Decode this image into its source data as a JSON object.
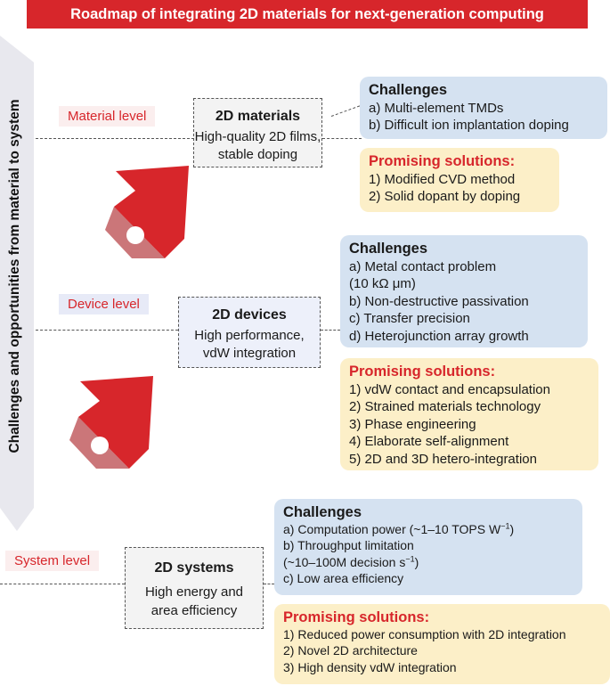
{
  "title": "Roadmap of integrating 2D materials for next-generation computing",
  "axis_label": "Challenges and opportunities from material to system",
  "levels": {
    "material": {
      "label": "Material level",
      "box_title": "2D materials",
      "box_lines": [
        "High-quality 2D films,",
        "stable doping"
      ],
      "challenges_title": "Challenges",
      "challenges": [
        "a) Multi-element TMDs",
        "b) Difficult ion implantation doping"
      ],
      "solutions_title": "Promising solutions:",
      "solutions": [
        "1) Modified CVD method",
        "2) Solid dopant by doping"
      ]
    },
    "device": {
      "label": "Device level",
      "box_title": "2D devices",
      "box_lines": [
        "High performance,",
        "vdW integration"
      ],
      "challenges_title": "Challenges",
      "challenges": [
        "a) Metal contact problem",
        "(10 kΩ μm)",
        "b) Non-destructive passivation",
        "c) Transfer precision",
        "d) Heterojunction array growth"
      ],
      "solutions_title": "Promising solutions:",
      "solutions": [
        "1) vdW contact and encapsulation",
        "2) Strained materials technology",
        "3) Phase engineering",
        "4) Elaborate self-alignment",
        "5) 2D and 3D hetero-integration"
      ]
    },
    "system": {
      "label": "System level",
      "box_title": "2D systems",
      "box_lines": [
        "High energy and",
        "area efficiency"
      ],
      "challenges_title": "Challenges",
      "challenges": [
        "a) Computation power (~1–10 TOPS W",
        "b) Throughput limitation",
        "(~10–100M decision s",
        "c) Low area efficiency"
      ],
      "challenge_sup": "−1",
      "challenge_tail": ")",
      "solutions_title": "Promising solutions:",
      "solutions": [
        "1) Reduced power consumption with 2D integration",
        "2) Novel 2D architecture",
        "3) High density vdW integration"
      ]
    }
  },
  "colors": {
    "accent_red": "#d7262b",
    "challenge_bg": "#d5e2f1",
    "solution_bg": "#fcefc8",
    "axis_arrow": "#e8e8ee"
  }
}
